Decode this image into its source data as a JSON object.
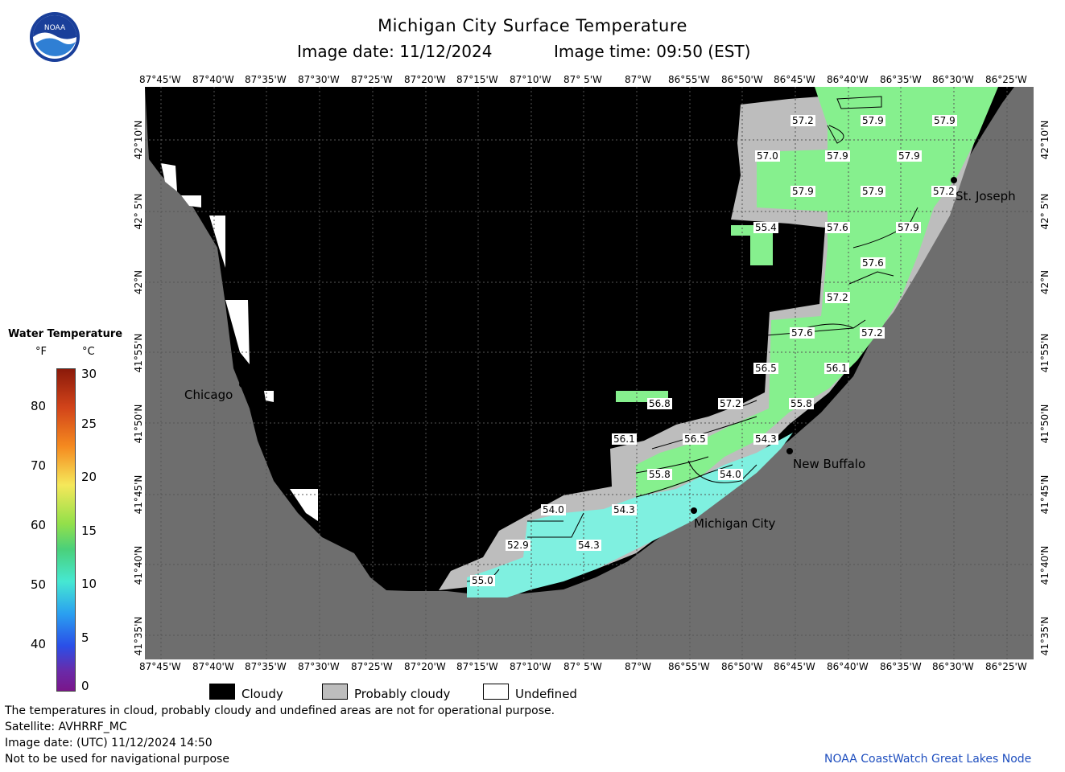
{
  "header": {
    "title": "Michigan City Surface Temperature",
    "image_date": "Image date: 11/12/2024",
    "image_time": "Image time: 09:50 (EST)"
  },
  "logo": {
    "text": "NOAA"
  },
  "lon_labels": [
    "87°45'W",
    "87°40'W",
    "87°35'W",
    "87°30'W",
    "87°25'W",
    "87°20'W",
    "87°15'W",
    "87°10'W",
    "87° 5'W",
    "87°W",
    "86°55'W",
    "86°50'W",
    "86°45'W",
    "86°40'W",
    "86°35'W",
    "86°30'W",
    "86°25'W"
  ],
  "lat_labels": [
    "42°10'N",
    "42° 5'N",
    "42°N",
    "41°55'N",
    "41°50'N",
    "41°45'N",
    "41°40'N",
    "41°35'N"
  ],
  "cities": {
    "chicago": "Chicago",
    "st_joseph": "St. Joseph",
    "new_buffalo": "New Buffalo",
    "michigan_city": "Michigan City"
  },
  "temps": [
    "57.2",
    "57.9",
    "57.9",
    "57.0",
    "57.9",
    "57.9",
    "57.9",
    "57.9",
    "57.2",
    "55.4",
    "57.6",
    "57.9",
    "57.6",
    "57.2",
    "57.6",
    "57.2",
    "56.5",
    "56.1",
    "56.8",
    "57.2",
    "55.8",
    "56.1",
    "56.5",
    "54.3",
    "55.8",
    "54.0",
    "54.0",
    "54.3",
    "52.9",
    "54.3",
    "55.0"
  ],
  "colorbar": {
    "title": "Water Temperature",
    "unit_f": "°F",
    "unit_c": "°C",
    "f_ticks": [
      "80",
      "70",
      "60",
      "50",
      "40"
    ],
    "c_ticks": [
      "30",
      "25",
      "20",
      "15",
      "10",
      "5",
      "0"
    ]
  },
  "legend": {
    "cloudy": "Cloudy",
    "probably_cloudy": "Probably cloudy",
    "undefined": "Undefined"
  },
  "footer": {
    "line1": "The temperatures in cloud, probably cloudy and undefined areas are not for operational purpose.",
    "line2": "Satellite: AVHRRF_MC",
    "line3": "Image date: (UTC) 11/12/2024  14:50",
    "line4": "Not to be used for navigational purpose",
    "credit": "NOAA CoastWatch Great Lakes Node"
  },
  "colors": {
    "land": "#6e6e6e",
    "cloud": "#000000",
    "prob_cloud": "#bdbdbd",
    "warm": "#86f08e",
    "cool": "#7ff0e0",
    "credit": "#1f4fbf"
  }
}
